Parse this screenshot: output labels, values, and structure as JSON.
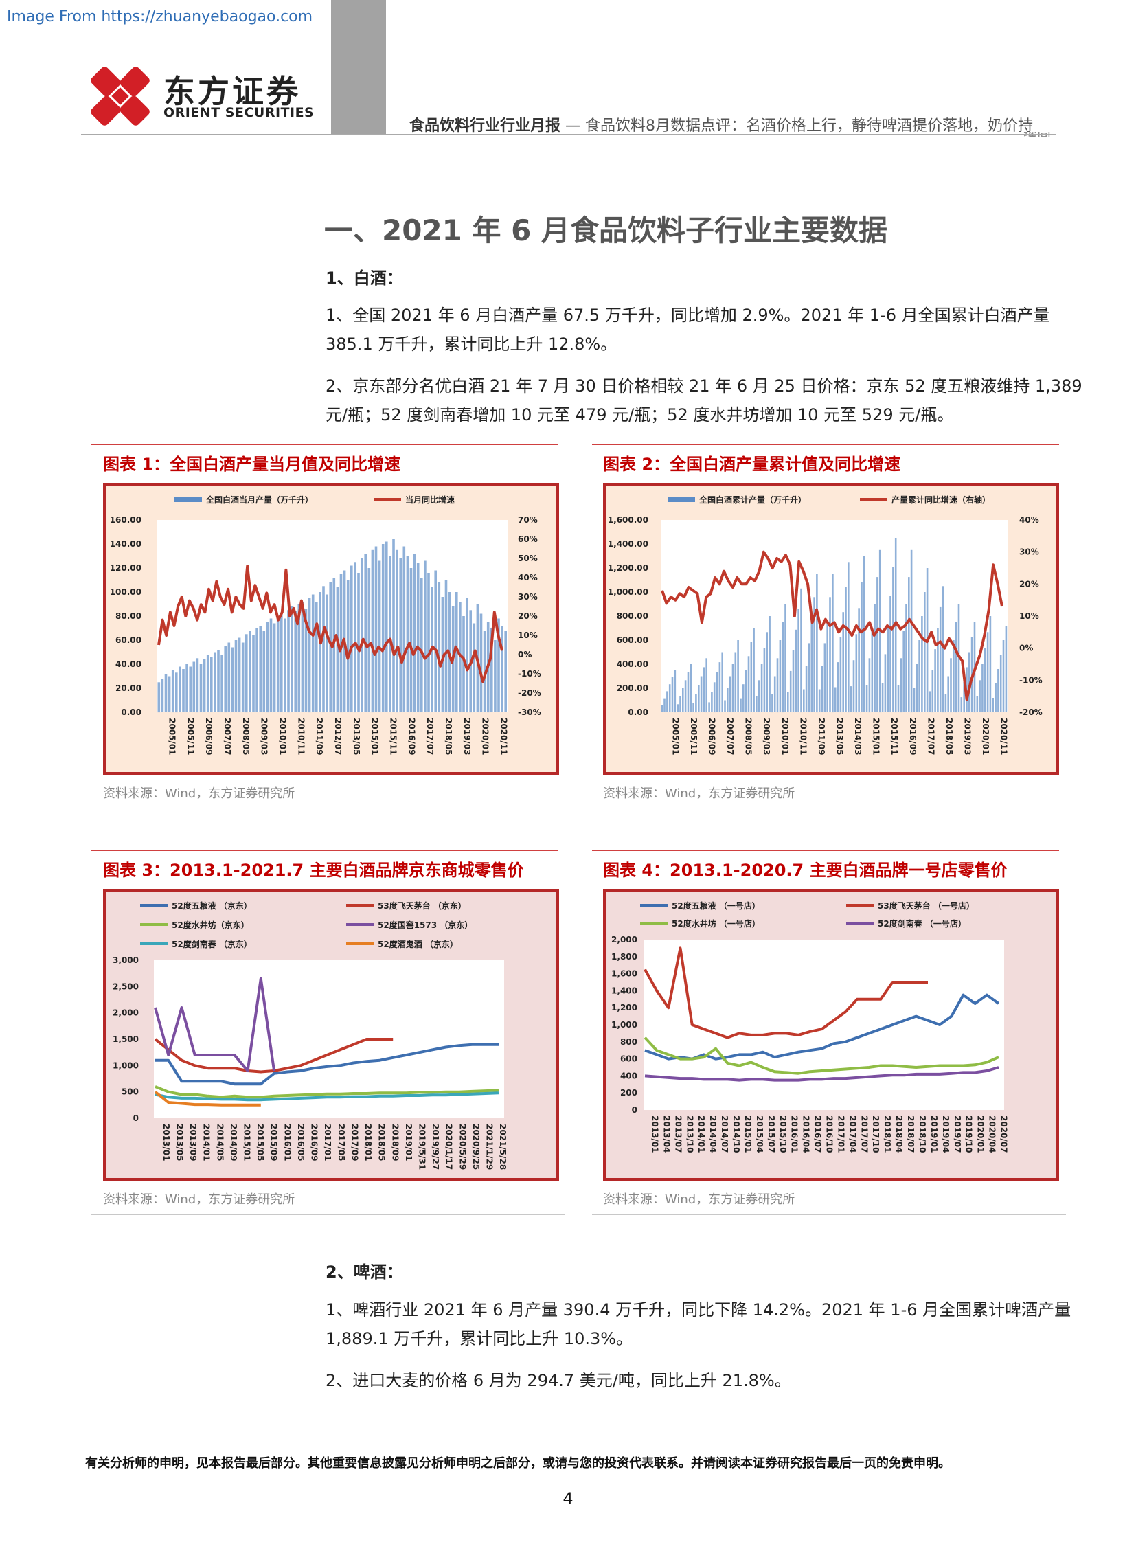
{
  "header": {
    "watermark": "Image From https://zhuanyebaogao.com",
    "logo_cn": "东方证券",
    "logo_en": "ORIENT SECURITIES",
    "report_type": "食品饮料行业行业月报",
    "dash": " — ",
    "report_subtitle": "食品饮料8月数据点评：名酒价格上行，静待啤酒提价落地，奶价持",
    "overflow_text": "续向上"
  },
  "section": {
    "title": "一、2021 年 6 月食品饮料子行业主要数据",
    "baijiu_heading": "1、白酒：",
    "baijiu_p1_l1": "1、全国 2021 年 6 月白酒产量 67.5 万千升，同比增加 2.9%。2021 年 1-6 月全国累计白酒产量",
    "baijiu_p1_l2": "385.1 万千升，累计同比上升 12.8%。",
    "baijiu_p2_l1": "2、京东部分名优白酒 21 年 7 月 30 日价格相较 21 年 6 月 25 日价格：京东 52 度五粮液维持 1,389",
    "baijiu_p2_l2": "元/瓶；52 度剑南春增加 10 元至 479 元/瓶；52 度水井坊增加 10 元至 529 元/瓶。",
    "beer_heading": "2、啤酒：",
    "beer_p1_l1": "1、啤酒行业 2021 年 6 月产量 390.4 万千升，同比下降 14.2%。2021 年 1-6 月全国累计啤酒产量",
    "beer_p1_l2": "1,889.1 万千升，累计同比上升 10.3%。",
    "beer_p2": "2、进口大麦的价格 6 月为 294.7 美元/吨，同比上升 21.8%。"
  },
  "figures": {
    "fig1_title": "图表 1：全国白酒产量当月值及同比增速",
    "fig2_title": "图表 2：全国白酒产量累计值及同比增速",
    "fig3_title": "图表 3：2013.1-2021.7 主要白酒品牌京东商城零售价",
    "fig4_title": "图表 4：2013.1-2020.7 主要白酒品牌一号店零售价",
    "source": "资料来源：Wind，东方证券研究所"
  },
  "footer": {
    "disclaimer": "有关分析师的申明，见本报告最后部分。其他重要信息披露见分析师申明之后部分，或请与您的投资代表联系。并请阅读本证券研究报告最后一页的免责申明。",
    "page": "4"
  },
  "colors": {
    "brand_red": "#c00000",
    "chart_border": "#b52828",
    "chart_bg_peach": "#fde9d9",
    "chart_bg_pink": "#f2dcdb",
    "bar_blue": "#5b8cc7",
    "line_red": "#c0392b"
  },
  "chart_data": [
    {
      "id": "fig1",
      "type": "bar",
      "legend": [
        "全国白酒当月产量（万千升）",
        "当月同比增速"
      ],
      "y_left_ticks": [
        "160.00",
        "140.00",
        "120.00",
        "100.00",
        "80.00",
        "60.00",
        "40.00",
        "20.00",
        "0.00"
      ],
      "y_right_ticks": [
        "70%",
        "60%",
        "50%",
        "40%",
        "30%",
        "20%",
        "10%",
        "0%",
        "-10%",
        "-20%",
        "-30%"
      ],
      "x_ticks": [
        "2005/01",
        "2005/11",
        "2006/09",
        "2007/07",
        "2008/05",
        "2009/03",
        "2010/01",
        "2010/11",
        "2011/09",
        "2012/07",
        "2013/05",
        "2015/01",
        "2015/11",
        "2016/09",
        "2017/07",
        "2018/05",
        "2019/03",
        "2020/01",
        "2020/11"
      ],
      "ylim_left": [
        0,
        160
      ],
      "ylim_right": [
        -30,
        70
      ],
      "series": [
        {
          "name": "全国白酒当月产量（万千升）",
          "kind": "bar",
          "axis": "left",
          "values": [
            25,
            28,
            32,
            30,
            35,
            33,
            38,
            36,
            40,
            38,
            42,
            45,
            40,
            44,
            48,
            46,
            50,
            52,
            48,
            55,
            58,
            54,
            60,
            62,
            58,
            65,
            68,
            64,
            70,
            72,
            68,
            75,
            78,
            74,
            80,
            82,
            78,
            85,
            88,
            84,
            90,
            92,
            86,
            95,
            98,
            92,
            100,
            105,
            98,
            108,
            112,
            104,
            115,
            118,
            110,
            122,
            125,
            116,
            128,
            132,
            120,
            135,
            138,
            126,
            140,
            142,
            130,
            144,
            135,
            128,
            138,
            130,
            120,
            132,
            124,
            112,
            126,
            116,
            104,
            118,
            108,
            96,
            110,
            100,
            88,
            100,
            92,
            80,
            95,
            85,
            74,
            90,
            82,
            68,
            75,
            70,
            60,
            78,
            72,
            68
          ]
        },
        {
          "name": "当月同比增速",
          "kind": "line",
          "axis": "right",
          "values": [
            5,
            18,
            10,
            22,
            15,
            25,
            30,
            20,
            28,
            24,
            18,
            26,
            22,
            34,
            28,
            38,
            30,
            26,
            34,
            22,
            30,
            26,
            24,
            46,
            28,
            36,
            30,
            24,
            32,
            22,
            26,
            18,
            22,
            44,
            20,
            24,
            16,
            28,
            18,
            12,
            10,
            16,
            6,
            14,
            8,
            4,
            10,
            2,
            8,
            -2,
            4,
            6,
            2,
            8,
            4,
            6,
            0,
            4,
            2,
            6,
            8,
            0,
            4,
            -4,
            2,
            6,
            0,
            4,
            2,
            -2,
            0,
            4,
            2,
            -6,
            0,
            2,
            -4,
            4,
            0,
            -2,
            -8,
            -4,
            2,
            -6,
            -14,
            -8,
            -2,
            22,
            10,
            2
          ]
        }
      ]
    },
    {
      "id": "fig2",
      "type": "bar",
      "legend": [
        "全国白酒累计产量（万千升）",
        "产量累计同比增速（右轴）"
      ],
      "y_left_ticks": [
        "1,600.00",
        "1,400.00",
        "1,200.00",
        "1,000.00",
        "800.00",
        "600.00",
        "400.00",
        "200.00",
        "0.00"
      ],
      "y_right_ticks": [
        "40%",
        "30%",
        "20%",
        "10%",
        "0%",
        "-10%",
        "-20%"
      ],
      "x_ticks": [
        "2005/01",
        "2005/11",
        "2006/09",
        "2007/07",
        "2008/05",
        "2009/03",
        "2010/01",
        "2010/11",
        "2011/09",
        "2013/05",
        "2014/03",
        "2015/01",
        "2015/11",
        "2016/09",
        "2017/07",
        "2018/05",
        "2019/03",
        "2020/01",
        "2020/11"
      ],
      "ylim_left": [
        0,
        1600
      ],
      "ylim_right": [
        -20,
        40
      ],
      "series": [
        {
          "name": "全国白酒累计产量（万千升）",
          "kind": "bar",
          "axis": "left",
          "cycle_peaks": [
            350,
            400,
            450,
            500,
            600,
            700,
            800,
            900,
            1030,
            1150,
            1150,
            1250,
            1300,
            1350,
            1450,
            1350,
            1200,
            1050,
            900,
            750,
            800,
            720
          ]
        },
        {
          "name": "产量累计同比增速（右轴）",
          "kind": "line",
          "axis": "right",
          "values": [
            18,
            14,
            16,
            15,
            17,
            16,
            19,
            18,
            17,
            8,
            16,
            17,
            22,
            20,
            24,
            21,
            19,
            22,
            20,
            20,
            22,
            21,
            24,
            30,
            28,
            25,
            28,
            27,
            29,
            26,
            10,
            27,
            24,
            20,
            8,
            12,
            6,
            9,
            7,
            8,
            5,
            7,
            6,
            4,
            7,
            5,
            6,
            8,
            4,
            6,
            5,
            7,
            6,
            8,
            6,
            7,
            9,
            7,
            5,
            3,
            2,
            5,
            1,
            2,
            0,
            3,
            1,
            -2,
            -4,
            -16,
            -10,
            -6,
            -2,
            4,
            12,
            26,
            20,
            13
          ]
        }
      ]
    },
    {
      "id": "fig3",
      "type": "line",
      "legend": [
        "52度五粮液 （京东）",
        "53度飞天茅台 （京东）",
        "52度水井坊（京东）",
        "52度国窖1573 （京东）",
        "52度剑南春 （京东）",
        "52度酒鬼酒 （京东）"
      ],
      "y_ticks": [
        "3,000",
        "2,500",
        "2,000",
        "1,500",
        "1,000",
        "500",
        "0"
      ],
      "x_ticks": [
        "2013/01",
        "2013/05",
        "2013/09",
        "2014/01",
        "2014/05",
        "2014/09",
        "2015/01",
        "2015/05",
        "2015/09",
        "2016/01",
        "2016/05",
        "2016/09",
        "2017/01",
        "2017/05",
        "2017/09",
        "2018/01",
        "2018/05",
        "2018/09",
        "2019/01",
        "2019/5/31",
        "2019/9/27",
        "2020/1/17",
        "2020/5/29",
        "2020/9/25",
        "2021/1/29",
        "2021/5/28"
      ],
      "ylim": [
        0,
        3000
      ],
      "series": [
        {
          "name": "52度五粮液 （京东）",
          "color": "#3e6fb0",
          "values": [
            1100,
            1100,
            700,
            700,
            700,
            700,
            650,
            650,
            650,
            850,
            880,
            900,
            950,
            980,
            1000,
            1050,
            1080,
            1100,
            1150,
            1200,
            1250,
            1300,
            1350,
            1380,
            1400,
            1400,
            1400
          ]
        },
        {
          "name": "53度飞天茅台 （京东）",
          "color": "#c0392b",
          "values": [
            1500,
            1300,
            1100,
            1000,
            950,
            950,
            950,
            900,
            880,
            900,
            950,
            1000,
            1100,
            1200,
            1300,
            1400,
            1500,
            1500,
            1500,
            null,
            null,
            null,
            null,
            null,
            null,
            null,
            null
          ]
        },
        {
          "name": "52度水井坊（京东）",
          "color": "#8fbc45",
          "values": [
            600,
            500,
            450,
            450,
            420,
            400,
            420,
            400,
            400,
            420,
            430,
            440,
            450,
            460,
            460,
            470,
            470,
            480,
            480,
            480,
            490,
            490,
            500,
            500,
            510,
            520,
            530
          ]
        },
        {
          "name": "52度国窖1573 （京东）",
          "color": "#7b4fa0",
          "values": [
            2100,
            1200,
            2100,
            1200,
            1200,
            1200,
            1200,
            900,
            2650,
            900,
            null,
            null,
            null,
            null,
            null,
            null,
            null,
            null,
            null,
            null,
            null,
            null,
            null,
            null,
            null,
            null,
            null
          ]
        },
        {
          "name": "52度剑南春 （京东）",
          "color": "#3aa6b9",
          "values": [
            450,
            400,
            380,
            380,
            370,
            360,
            360,
            350,
            350,
            360,
            370,
            380,
            390,
            400,
            400,
            410,
            410,
            420,
            420,
            430,
            430,
            440,
            440,
            450,
            460,
            470,
            480
          ]
        },
        {
          "name": "52度酒鬼酒 （京东）",
          "color": "#e67e22",
          "values": [
            500,
            300,
            280,
            260,
            260,
            250,
            250,
            250,
            250,
            null,
            null,
            null,
            null,
            null,
            null,
            null,
            null,
            null,
            null,
            null,
            null,
            null,
            null,
            null,
            null,
            null,
            null
          ]
        }
      ]
    },
    {
      "id": "fig4",
      "type": "line",
      "legend": [
        "52度五粮液 （一号店）",
        "53度飞天茅台 （一号店）",
        "52度水井坊 （一号店）",
        "52度剑南春 （一号店）"
      ],
      "y_ticks": [
        "2,000",
        "1,800",
        "1,600",
        "1,400",
        "1,200",
        "1,000",
        "800",
        "600",
        "400",
        "200",
        "0"
      ],
      "x_ticks": [
        "2013/01",
        "2013/04",
        "2013/07",
        "2013/10",
        "2014/01",
        "2014/04",
        "2014/07",
        "2014/10",
        "2015/01",
        "2015/04",
        "2015/07",
        "2015/10",
        "2016/01",
        "2016/04",
        "2016/07",
        "2016/10",
        "2017/01",
        "2017/04",
        "2017/07",
        "2017/10",
        "2018/01",
        "2018/04",
        "2018/07",
        "2018/10",
        "2019/01",
        "2019/04",
        "2019/07",
        "2019/10",
        "2020/01",
        "2020/04",
        "2020/07"
      ],
      "ylim": [
        0,
        2000
      ],
      "series": [
        {
          "name": "52度五粮液 （一号店）",
          "color": "#3e6fb0",
          "values": [
            700,
            650,
            600,
            620,
            600,
            650,
            600,
            620,
            650,
            650,
            680,
            620,
            650,
            680,
            700,
            720,
            780,
            800,
            850,
            900,
            950,
            1000,
            1050,
            1100,
            1050,
            1000,
            1100,
            1350,
            1250,
            1350,
            1250
          ]
        },
        {
          "name": "53度飞天茅台 （一号店）",
          "color": "#c0392b",
          "values": [
            1650,
            1400,
            1200,
            1900,
            1000,
            950,
            900,
            850,
            900,
            880,
            880,
            900,
            900,
            880,
            920,
            950,
            1050,
            1150,
            1300,
            1300,
            1300,
            1500,
            1500,
            1500,
            1500,
            null,
            null,
            null,
            null,
            null,
            null
          ]
        },
        {
          "name": "52度水井坊 （一号店）",
          "color": "#8fbc45",
          "values": [
            850,
            700,
            650,
            600,
            600,
            620,
            720,
            550,
            520,
            560,
            500,
            450,
            440,
            430,
            450,
            460,
            470,
            480,
            490,
            500,
            520,
            520,
            510,
            500,
            510,
            520,
            520,
            520,
            530,
            560,
            620
          ]
        },
        {
          "name": "52度剑南春 （一号店）",
          "color": "#7b4fa0",
          "values": [
            400,
            390,
            380,
            370,
            370,
            360,
            360,
            360,
            350,
            360,
            360,
            350,
            350,
            350,
            360,
            360,
            370,
            370,
            380,
            390,
            400,
            410,
            410,
            420,
            420,
            420,
            430,
            440,
            440,
            460,
            500
          ]
        }
      ]
    }
  ]
}
